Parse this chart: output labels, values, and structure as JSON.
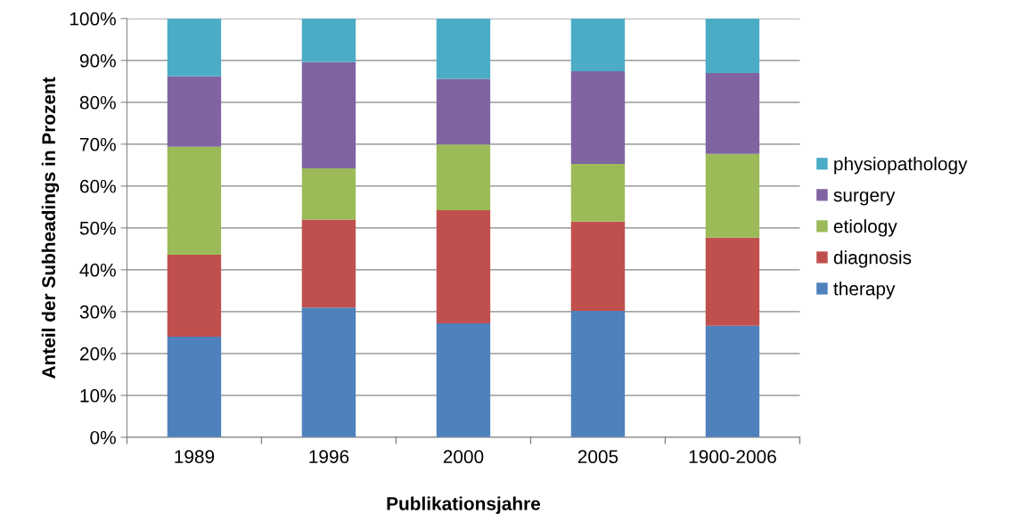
{
  "chart_data": {
    "type": "bar",
    "stacked": true,
    "xlabel": "Publikationsjahre",
    "ylabel": "Anteil der Subheadings in Prozent",
    "categories": [
      "1989",
      "1996",
      "2000",
      "2005",
      "1900-2006"
    ],
    "series": [
      {
        "name": "therapy",
        "color": "#4f81bd",
        "values": [
          24,
          31,
          27.2,
          30.2,
          26.6
        ]
      },
      {
        "name": "diagnosis",
        "color": "#c0504d",
        "values": [
          19.6,
          21,
          27,
          21.3,
          21.1
        ]
      },
      {
        "name": "etiology",
        "color": "#9bbb59",
        "values": [
          25.8,
          12.2,
          15.7,
          13.8,
          20
        ]
      },
      {
        "name": "surgery",
        "color": "#8064a2",
        "values": [
          16.8,
          25.4,
          15.7,
          22.1,
          19.3
        ]
      },
      {
        "name": "physiopathology",
        "color": "#4bacc6",
        "values": [
          13.8,
          10.4,
          14.4,
          12.6,
          13
        ]
      }
    ],
    "ylim": [
      0,
      100
    ],
    "yticks": [
      {
        "value": 0,
        "label": "0%"
      },
      {
        "value": 10,
        "label": "10%"
      },
      {
        "value": 20,
        "label": "20%"
      },
      {
        "value": 30,
        "label": "30%"
      },
      {
        "value": 40,
        "label": "40%"
      },
      {
        "value": 50,
        "label": "50%"
      },
      {
        "value": 60,
        "label": "60%"
      },
      {
        "value": 70,
        "label": "70%"
      },
      {
        "value": 80,
        "label": "80%"
      },
      {
        "value": 90,
        "label": "90%"
      },
      {
        "value": 100,
        "label": "100%"
      }
    ],
    "grid": "y",
    "legend": "right"
  }
}
